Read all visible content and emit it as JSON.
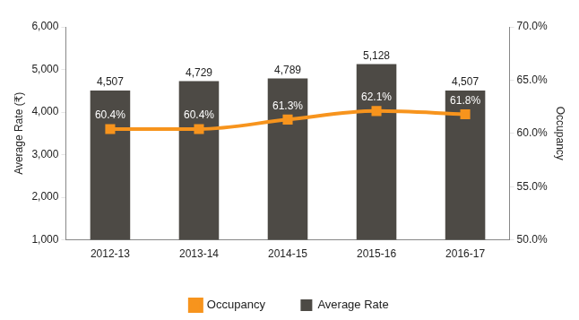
{
  "chart_data": {
    "type": "bar",
    "categories": [
      "2012-13",
      "2013-14",
      "2014-15",
      "2015-16",
      "2016-17"
    ],
    "series": [
      {
        "name": "Average Rate",
        "type": "bar",
        "color": "#4d4a45",
        "values": [
          4507,
          4729,
          4789,
          5128,
          4507
        ],
        "value_labels": [
          "4,507",
          "4,729",
          "4,789",
          "5,128",
          "4,507"
        ]
      },
      {
        "name": "Occupancy",
        "type": "line",
        "axis": "y2",
        "color": "#f7941d",
        "marker": "square",
        "line_style": "solid",
        "values": [
          60.4,
          60.4,
          61.3,
          62.1,
          61.8
        ],
        "value_labels": [
          "60.4%",
          "60.4%",
          "61.3%",
          "62.1%",
          "61.8%"
        ]
      }
    ],
    "y_label": "Average Rate (₹)",
    "y2_label": "Occupancy",
    "ylim": [
      1000,
      6000
    ],
    "yticks": [
      {
        "value": 1000,
        "label": "1,000"
      },
      {
        "value": 2000,
        "label": "2,000"
      },
      {
        "value": 3000,
        "label": "3,000"
      },
      {
        "value": 4000,
        "label": "4,000"
      },
      {
        "value": 5000,
        "label": "5,000"
      },
      {
        "value": 6000,
        "label": "6,000"
      }
    ],
    "y2lim": [
      50,
      70
    ],
    "y2ticks": [
      {
        "value": 50,
        "label": "50.0%"
      },
      {
        "value": 55,
        "label": "55.0%"
      },
      {
        "value": 60,
        "label": "60.0%"
      },
      {
        "value": 65,
        "label": "65.0%"
      },
      {
        "value": 70,
        "label": "70.0%"
      }
    ],
    "grid": false,
    "legend": "bottom",
    "data_labels": true
  }
}
